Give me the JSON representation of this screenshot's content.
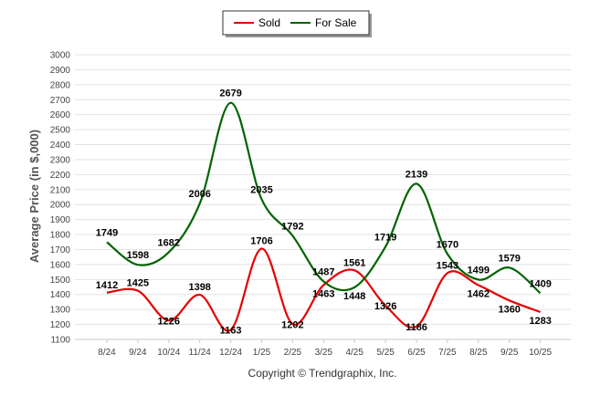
{
  "chart_data": {
    "type": "line",
    "title": "",
    "xlabel": "",
    "ylabel": "Average Price (in $,000)",
    "ylim": [
      1100,
      3000
    ],
    "yticks": [
      1100,
      1200,
      1300,
      1400,
      1500,
      1600,
      1700,
      1800,
      1900,
      2000,
      2100,
      2200,
      2300,
      2400,
      2500,
      2600,
      2700,
      2800,
      2900,
      3000
    ],
    "categories": [
      "8/24",
      "9/24",
      "10/24",
      "11/24",
      "12/24",
      "1/25",
      "2/25",
      "3/25",
      "4/25",
      "5/25",
      "6/25",
      "7/25",
      "8/25",
      "9/25",
      "10/25"
    ],
    "series": [
      {
        "name": "Sold",
        "color": "#e60000",
        "values": [
          1412,
          1425,
          1226,
          1398,
          1163,
          1706,
          1202,
          1463,
          1561,
          1326,
          1186,
          1543,
          1462,
          1360,
          1283
        ]
      },
      {
        "name": "For Sale",
        "color": "#006400",
        "values": [
          1749,
          1598,
          1682,
          2006,
          2679,
          2035,
          1792,
          1487,
          1448,
          1719,
          2139,
          1670,
          1499,
          1579,
          1409
        ]
      }
    ],
    "legend": "top-center",
    "grid": true,
    "credit": "Copyright © Trendgraphix, Inc."
  }
}
